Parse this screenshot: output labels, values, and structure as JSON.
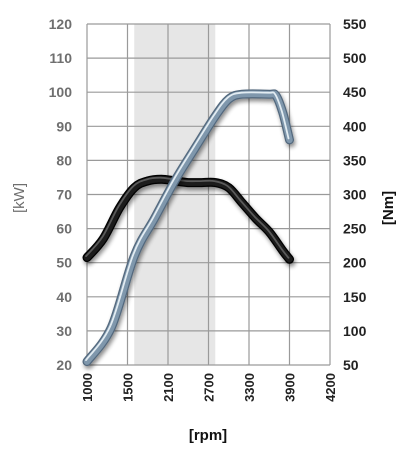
{
  "chart_data": {
    "type": "line",
    "xlabel": "[rpm]",
    "ylabel_left": "[kW]",
    "ylabel_right": "[Nm]",
    "x_ticks": [
      "1000",
      "1500",
      "2100",
      "2700",
      "3300",
      "3900",
      "4200"
    ],
    "y_left_ticks": [
      "20",
      "30",
      "40",
      "50",
      "60",
      "70",
      "80",
      "90",
      "100",
      "110",
      "120"
    ],
    "y_right_ticks": [
      "50",
      "100",
      "150",
      "200",
      "250",
      "300",
      "350",
      "400",
      "450",
      "500",
      "550"
    ],
    "y_left_range": [
      20,
      120
    ],
    "y_right_range": [
      50,
      550
    ],
    "grid": true,
    "shaded_band": {
      "from_rpm": 1600,
      "to_rpm": 2800
    },
    "series": [
      {
        "axis": "left",
        "color": "#1a1a1a",
        "points": [
          [
            1000,
            51.5
          ],
          [
            1200,
            57
          ],
          [
            1400,
            66
          ],
          [
            1600,
            72
          ],
          [
            1800,
            74
          ],
          [
            2000,
            74.5
          ],
          [
            2200,
            74
          ],
          [
            2400,
            73.5
          ],
          [
            2600,
            73.5
          ],
          [
            2800,
            73.5
          ],
          [
            3000,
            72
          ],
          [
            3200,
            67.5
          ],
          [
            3400,
            63
          ],
          [
            3600,
            59
          ],
          [
            3800,
            53.5
          ],
          [
            3900,
            51
          ]
        ]
      },
      {
        "axis": "right",
        "color": "#7f97ac",
        "points": [
          [
            1000,
            55
          ],
          [
            1300,
            105
          ],
          [
            1600,
            210
          ],
          [
            1900,
            265
          ],
          [
            2200,
            320
          ],
          [
            2500,
            368
          ],
          [
            2800,
            415
          ],
          [
            3000,
            440
          ],
          [
            3200,
            447
          ],
          [
            3600,
            447
          ],
          [
            3700,
            445
          ],
          [
            3800,
            420
          ],
          [
            3900,
            380
          ]
        ]
      }
    ]
  }
}
